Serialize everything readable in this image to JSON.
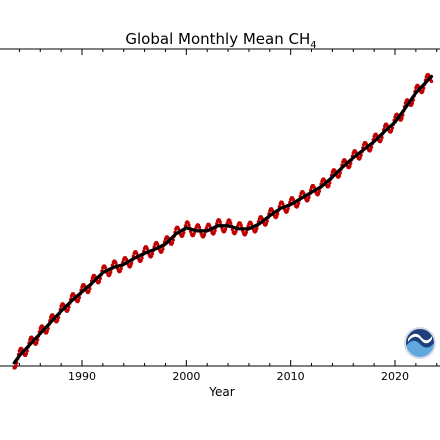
{
  "chart_data": {
    "type": "line",
    "title": "Global Monthly Mean CH",
    "title_subscript": "4",
    "xlabel": "Year",
    "ylabel": "",
    "x_ticks": [
      1990,
      2000,
      2010,
      2020
    ],
    "xlim": [
      1983,
      2024.3
    ],
    "ylim": [
      1620,
      1940
    ],
    "grid": false,
    "legend": "none",
    "colors": {
      "monthly": "#c00000",
      "trend": "#000000",
      "axis": "#000000",
      "logo_dark": "#1f3f7a",
      "logo_light": "#5fa9df"
    },
    "logo_icon": "noaa-logo-icon",
    "series": [
      {
        "name": "",
        "style": "red-dots-thin-line",
        "x": [
          1983.5,
          1984.0,
          1985.0,
          1986.0,
          1987.0,
          1988.0,
          1989.0,
          1990.0,
          1991.0,
          1992.0,
          1993.0,
          1994.0,
          1995.0,
          1996.0,
          1997.0,
          1998.0,
          1999.0,
          2000.0,
          2001.0,
          2002.0,
          2003.0,
          2004.0,
          2005.0,
          2006.0,
          2007.0,
          2008.0,
          2009.0,
          2010.0,
          2011.0,
          2012.0,
          2013.0,
          2014.0,
          2015.0,
          2016.0,
          2017.0,
          2018.0,
          2019.0,
          2020.0,
          2021.0,
          2022.0,
          2023.5
        ],
        "y": [
          1627,
          1634,
          1645,
          1656,
          1667,
          1678,
          1688,
          1697,
          1706,
          1716,
          1721,
          1724,
          1730,
          1735,
          1739,
          1744,
          1754,
          1760,
          1757,
          1757,
          1762,
          1762,
          1759,
          1759,
          1764,
          1772,
          1779,
          1783,
          1789,
          1795,
          1801,
          1810,
          1820,
          1829,
          1837,
          1845,
          1855,
          1864,
          1878,
          1893,
          1909
        ],
        "seasonal_amplitude": 6
      },
      {
        "name": "",
        "style": "black-thick-line",
        "x": [
          1983.5,
          1984.0,
          1985.0,
          1986.0,
          1987.0,
          1988.0,
          1989.0,
          1990.0,
          1991.0,
          1992.0,
          1993.0,
          1994.0,
          1995.0,
          1996.0,
          1997.0,
          1998.0,
          1999.0,
          2000.0,
          2001.0,
          2002.0,
          2003.0,
          2004.0,
          2005.0,
          2006.0,
          2007.0,
          2008.0,
          2009.0,
          2010.0,
          2011.0,
          2012.0,
          2013.0,
          2014.0,
          2015.0,
          2016.0,
          2017.0,
          2018.0,
          2019.0,
          2020.0,
          2021.0,
          2022.0,
          2023.5
        ],
        "y": [
          1627,
          1634,
          1645,
          1656,
          1667,
          1678,
          1688,
          1697,
          1706,
          1716,
          1721,
          1724,
          1730,
          1735,
          1739,
          1744,
          1754,
          1760,
          1757,
          1757,
          1762,
          1762,
          1759,
          1759,
          1764,
          1772,
          1779,
          1783,
          1789,
          1795,
          1801,
          1810,
          1820,
          1829,
          1837,
          1845,
          1855,
          1864,
          1878,
          1893,
          1909
        ]
      }
    ]
  }
}
